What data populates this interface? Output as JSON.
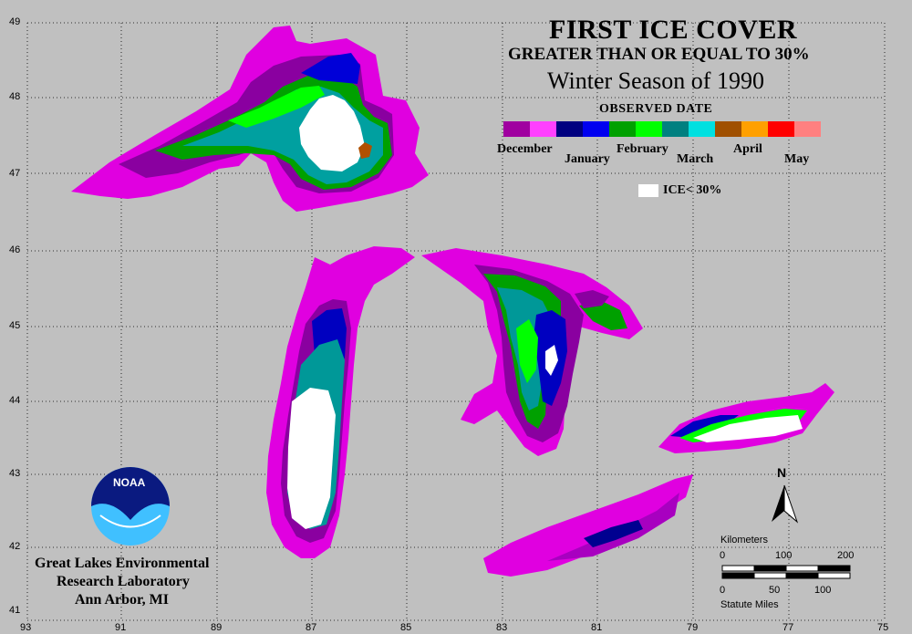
{
  "title": "FIRST ICE COVER",
  "subtitle": "GREATER THAN OR EQUAL TO 30%",
  "season": "Winter Season of 1990",
  "legend": {
    "heading": "OBSERVED DATE",
    "months": [
      "December",
      "January",
      "February",
      "March",
      "April",
      "May"
    ],
    "colors": [
      "#a000a0",
      "#ff40ff",
      "#000080",
      "#0000f0",
      "#00a000",
      "#00ff00",
      "#008080",
      "#00e0e0",
      "#a05000",
      "#ffa000",
      "#ff0000",
      "#ff8080"
    ],
    "ice_label": "ICE< 30%",
    "ice_color": "#ffffff"
  },
  "lat_ticks": [
    "49",
    "48",
    "47",
    "46",
    "45",
    "44",
    "43",
    "42",
    "41"
  ],
  "lon_ticks": [
    "93",
    "91",
    "89",
    "87",
    "85",
    "83",
    "81",
    "79",
    "77",
    "75"
  ],
  "org": {
    "logo_text": "NOAA",
    "line1": "Great Lakes Environmental",
    "line2": "Research Laboratory",
    "line3": "Ann Arbor, MI"
  },
  "scale_bar": {
    "km_label": "Kilometers",
    "km_ticks": [
      "0",
      "100",
      "200"
    ],
    "mi_ticks": [
      "0",
      "50",
      "100"
    ],
    "mi_label": "Statute Miles"
  },
  "north_label": "N"
}
